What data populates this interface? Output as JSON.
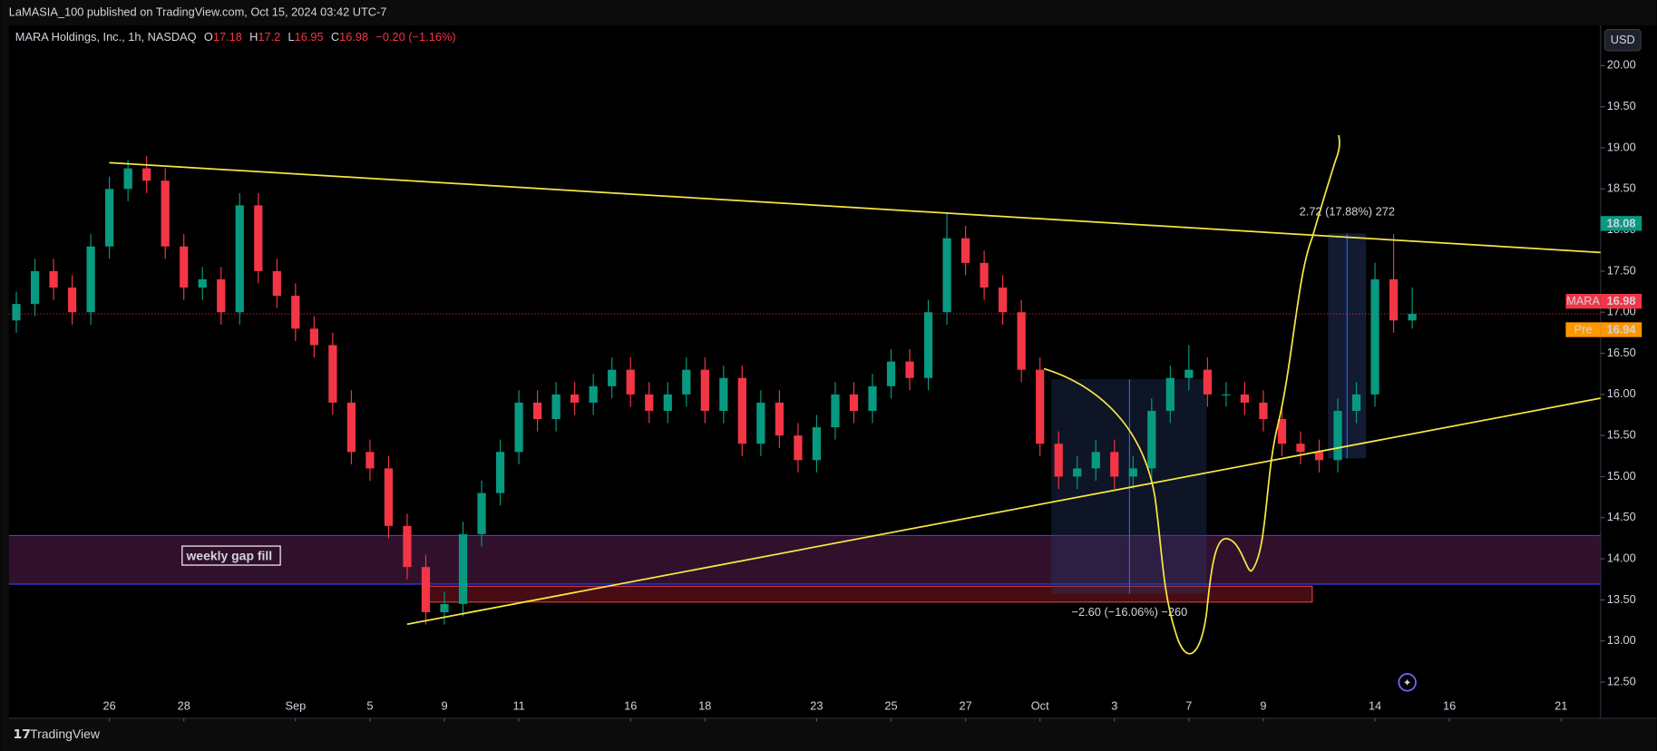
{
  "header": {
    "publisher": "LaMASIA_100 published on TradingView.com, Oct 15, 2024 03:42 UTC-7",
    "brand": "TradingView"
  },
  "chart_data": {
    "type": "candlestick",
    "title": "MARA Holdings, Inc., 1h, NASDAQ",
    "ohlc": [
      {
        "label": "O",
        "value": 17.18
      },
      {
        "label": "H",
        "value": 17.2
      },
      {
        "label": "L",
        "value": 16.95
      },
      {
        "label": "C",
        "value": 16.98
      }
    ],
    "change": "−0.20 (−1.16%)",
    "currency": "USD",
    "up_color": "#089981",
    "down_color": "#f23645",
    "grid": false,
    "xlim": [
      -2.7,
      40.06
    ],
    "ylim": [
      12.06,
      20.49
    ],
    "xticks": [
      {
        "value": 0,
        "label": "26"
      },
      {
        "value": 2,
        "label": "28"
      },
      {
        "value": 5,
        "label": "Sep"
      },
      {
        "value": 7,
        "label": "5"
      },
      {
        "value": 9,
        "label": "9"
      },
      {
        "value": 11,
        "label": "11"
      },
      {
        "value": 14,
        "label": "16"
      },
      {
        "value": 16,
        "label": "18"
      },
      {
        "value": 19,
        "label": "23"
      },
      {
        "value": 21,
        "label": "25"
      },
      {
        "value": 23,
        "label": "27"
      },
      {
        "value": 25,
        "label": "Oct"
      },
      {
        "value": 27,
        "label": "3"
      },
      {
        "value": 29,
        "label": "7"
      },
      {
        "value": 31,
        "label": "9"
      },
      {
        "value": 34,
        "label": "14"
      },
      {
        "value": 36,
        "label": "16"
      },
      {
        "value": 39,
        "label": "21"
      }
    ],
    "yticks": [
      {
        "value": 12.5,
        "label": "12.50"
      },
      {
        "value": 13,
        "label": "13.00"
      },
      {
        "value": 13.5,
        "label": "13.50"
      },
      {
        "value": 14,
        "label": "14.00"
      },
      {
        "value": 14.5,
        "label": "14.50"
      },
      {
        "value": 15,
        "label": "15.00"
      },
      {
        "value": 15.5,
        "label": "15.50"
      },
      {
        "value": 16,
        "label": "16.00"
      },
      {
        "value": 16.5,
        "label": "16.50"
      },
      {
        "value": 17,
        "label": "17.00"
      },
      {
        "value": 17.5,
        "label": "17.50"
      },
      {
        "value": 18,
        "label": "18.00"
      },
      {
        "value": 18.5,
        "label": "18.50"
      },
      {
        "value": 19,
        "label": "19.00"
      },
      {
        "value": 19.5,
        "label": "19.50"
      },
      {
        "value": 20,
        "label": "20.00"
      }
    ],
    "x": [
      -2.5,
      -2,
      -1.5,
      -1,
      -0.5,
      0,
      0.5,
      1,
      1.5,
      2,
      2.5,
      3,
      3.5,
      4,
      4.5,
      5,
      5.5,
      6,
      6.5,
      7,
      7.5,
      8,
      8.5,
      9,
      9.5,
      10,
      10.5,
      11,
      11.5,
      12,
      12.5,
      13,
      13.5,
      14,
      14.5,
      15,
      15.5,
      16,
      16.5,
      17,
      17.5,
      18,
      18.5,
      19,
      19.5,
      20,
      20.5,
      21,
      21.5,
      22,
      22.5,
      23,
      23.5,
      24,
      24.5,
      25,
      25.5,
      26,
      26.5,
      27,
      27.5,
      28,
      28.5,
      29,
      29.5,
      30,
      30.5,
      31,
      31.5,
      32,
      32.5,
      33,
      33.5,
      34,
      34.5,
      35
    ],
    "open": [
      16.9,
      17.1,
      17.5,
      17.3,
      17.0,
      17.8,
      18.5,
      18.75,
      18.6,
      17.8,
      17.3,
      17.4,
      17.0,
      18.3,
      17.5,
      17.2,
      16.8,
      16.6,
      15.9,
      15.3,
      15.1,
      14.4,
      13.9,
      13.35,
      13.45,
      14.3,
      14.8,
      15.3,
      15.9,
      15.7,
      16.0,
      15.9,
      16.1,
      16.3,
      16.0,
      15.8,
      16.0,
      16.3,
      15.8,
      16.2,
      15.4,
      15.9,
      15.5,
      15.2,
      15.6,
      16.0,
      15.8,
      16.1,
      16.4,
      16.2,
      17.0,
      17.9,
      17.6,
      17.3,
      17.0,
      16.3,
      15.4,
      15.0,
      15.1,
      15.3,
      15.0,
      15.1,
      15.8,
      16.2,
      16.3,
      16.0,
      16.0,
      15.9,
      15.7,
      15.4,
      15.3,
      15.2,
      15.8,
      16.0,
      17.4,
      16.9
    ],
    "high": [
      17.25,
      17.65,
      17.65,
      17.45,
      17.95,
      18.65,
      18.85,
      18.9,
      18.75,
      17.95,
      17.55,
      17.55,
      18.45,
      18.45,
      17.65,
      17.35,
      16.95,
      16.75,
      16.05,
      15.45,
      15.25,
      14.55,
      14.05,
      13.6,
      14.45,
      14.95,
      15.45,
      16.05,
      16.05,
      16.15,
      16.15,
      16.25,
      16.45,
      16.45,
      16.15,
      16.15,
      16.45,
      16.45,
      16.35,
      16.35,
      16.05,
      16.05,
      15.65,
      15.75,
      16.15,
      16.15,
      16.25,
      16.55,
      16.55,
      17.15,
      18.2,
      18.05,
      17.75,
      17.45,
      17.15,
      16.45,
      15.55,
      15.25,
      15.45,
      15.45,
      15.25,
      15.95,
      16.35,
      16.6,
      16.45,
      16.15,
      16.15,
      16.05,
      15.85,
      15.55,
      15.45,
      15.95,
      16.15,
      17.6,
      17.95,
      17.3
    ],
    "low": [
      16.75,
      16.95,
      17.15,
      16.85,
      16.85,
      17.65,
      18.35,
      18.45,
      17.65,
      17.15,
      17.15,
      16.85,
      16.85,
      17.35,
      17.05,
      16.65,
      16.45,
      15.75,
      15.15,
      14.95,
      14.25,
      13.75,
      13.2,
      13.2,
      13.3,
      14.15,
      14.65,
      15.15,
      15.55,
      15.55,
      15.75,
      15.75,
      15.95,
      15.85,
      15.65,
      15.65,
      15.85,
      15.65,
      15.65,
      15.25,
      15.25,
      15.35,
      15.05,
      15.05,
      15.45,
      15.65,
      15.65,
      15.95,
      16.05,
      16.05,
      16.85,
      17.45,
      17.15,
      16.85,
      16.15,
      15.25,
      14.85,
      14.85,
      14.95,
      14.85,
      14.85,
      14.95,
      15.65,
      16.05,
      15.85,
      15.85,
      15.75,
      15.55,
      15.25,
      15.15,
      15.05,
      15.05,
      15.65,
      15.85,
      16.75,
      16.8
    ],
    "close": [
      17.1,
      17.5,
      17.3,
      17.0,
      17.8,
      18.5,
      18.75,
      18.6,
      17.8,
      17.3,
      17.4,
      17.0,
      18.3,
      17.5,
      17.2,
      16.8,
      16.6,
      15.9,
      15.3,
      15.1,
      14.4,
      13.9,
      13.35,
      13.45,
      14.3,
      14.8,
      15.3,
      15.9,
      15.7,
      16.0,
      15.9,
      16.1,
      16.3,
      16.0,
      15.8,
      16.0,
      16.3,
      15.8,
      16.2,
      15.4,
      15.9,
      15.5,
      15.2,
      15.6,
      16.0,
      15.8,
      16.1,
      16.4,
      16.2,
      17.0,
      17.9,
      17.6,
      17.3,
      17.0,
      16.3,
      15.4,
      15.0,
      15.1,
      15.3,
      15.0,
      15.1,
      15.8,
      16.2,
      16.3,
      16.0,
      16.0,
      15.9,
      15.7,
      15.4,
      15.3,
      15.2,
      15.8,
      16.0,
      17.4,
      16.9,
      16.98
    ],
    "last_price": {
      "label": "MARA",
      "value": 16.98,
      "color": "#f23645"
    },
    "pre_price": {
      "label": "Pre",
      "value": 16.94,
      "color": "#ff9800"
    },
    "high_marker": {
      "value": 18.08,
      "color": "#089981"
    },
    "annotations": {
      "gap": "weekly gap fill",
      "long": "2.72 (17.88%) 272",
      "short": "−2.60 (−16.06%) −260"
    }
  }
}
